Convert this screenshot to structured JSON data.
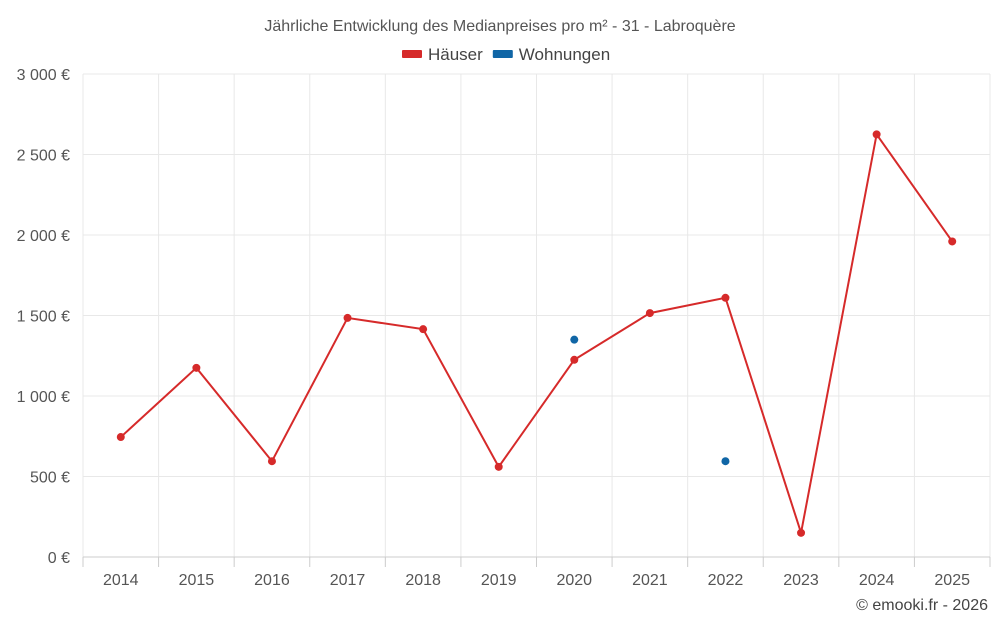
{
  "chart_data": {
    "type": "line",
    "title": "Jährliche Entwicklung des Medianpreises pro m² - 31 - Labroquère",
    "categories": [
      "2014",
      "2015",
      "2016",
      "2017",
      "2018",
      "2019",
      "2020",
      "2021",
      "2022",
      "2023",
      "2024",
      "2025"
    ],
    "series": [
      {
        "name": "Häuser",
        "color": "#d62a2a",
        "values": [
          745,
          1175,
          595,
          1485,
          1415,
          560,
          1225,
          1515,
          1610,
          150,
          2625,
          1960
        ]
      },
      {
        "name": "Wohnungen",
        "color": "#1066a6",
        "values": [
          null,
          null,
          null,
          null,
          null,
          null,
          1350,
          null,
          595,
          null,
          null,
          null
        ]
      }
    ],
    "ylim": [
      0,
      3000
    ],
    "yticks": [
      0,
      500,
      1000,
      1500,
      2000,
      2500,
      3000
    ],
    "ytick_labels": [
      "0 €",
      "500 €",
      "1 000 €",
      "1 500 €",
      "2 000 €",
      "2 500 €",
      "3 000 €"
    ],
    "grid": true,
    "legend_position": "top-center"
  },
  "credit": "© emooki.fr - 2026"
}
